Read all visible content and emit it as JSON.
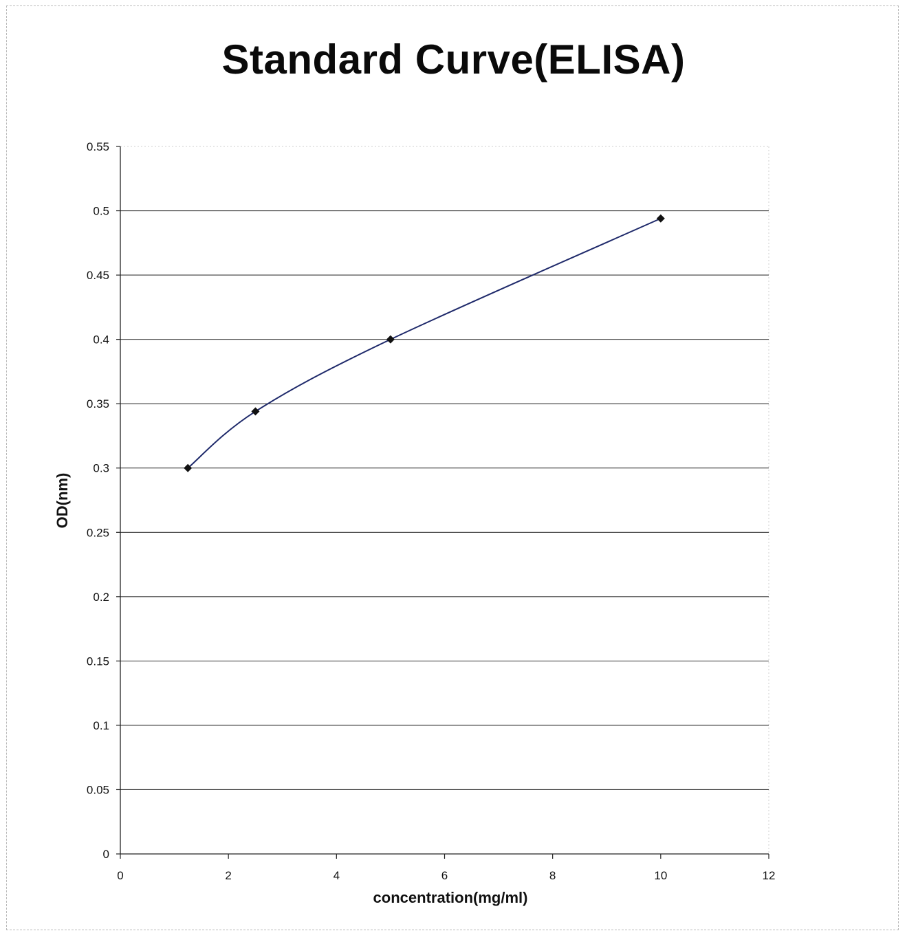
{
  "chart_data": {
    "type": "line",
    "title": "Standard Curve(ELISA)",
    "xlabel": "concentration(mg/ml)",
    "ylabel": "OD(nm)",
    "xlim": [
      0,
      12
    ],
    "ylim": [
      0,
      0.55
    ],
    "x_ticks": [
      "0",
      "2",
      "4",
      "6",
      "8",
      "10",
      "12"
    ],
    "y_ticks": [
      "0",
      "0.05",
      "0.1",
      "0.15",
      "0.2",
      "0.25",
      "0.3",
      "0.35",
      "0.4",
      "0.45",
      "0.5",
      "0.55"
    ],
    "grid": "horizontal",
    "legend": "none",
    "series": [
      {
        "x": [
          1.25,
          2.5,
          5,
          10
        ],
        "y": [
          0.3,
          0.344,
          0.4,
          0.494
        ],
        "color": "#1f2a6b",
        "marker": "diamond",
        "marker_color": "#111111"
      }
    ]
  }
}
